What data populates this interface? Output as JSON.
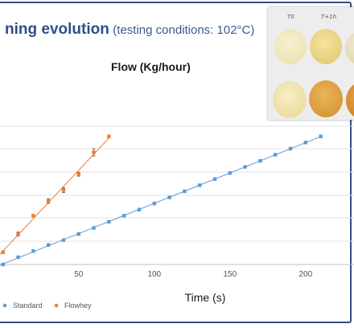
{
  "title": {
    "main": "ning evolution",
    "sub": "(testing conditions: 102°C)"
  },
  "flow_label": "Flow (Kg/hour)",
  "photo": {
    "label_left": "T0",
    "label_right": "T+1h"
  },
  "chart_data": {
    "type": "scatter",
    "xlabel": "Time (s)",
    "x_ticks": [
      "50",
      "100",
      "150",
      "200"
    ],
    "xlim": [
      -2,
      232
    ],
    "ylim": [
      0,
      5.8
    ],
    "grid": true,
    "legend_position": "bottom-left",
    "series": [
      {
        "name": "Standard",
        "color": "#5b9bd5",
        "x": [
          0,
          10,
          20,
          30,
          40,
          50,
          60,
          70,
          80,
          90,
          100,
          110,
          120,
          130,
          140,
          150,
          160,
          170,
          180,
          190,
          200,
          210
        ],
        "y": [
          0.0,
          0.3,
          0.55,
          0.8,
          1.0,
          1.25,
          1.5,
          1.75,
          2.0,
          2.25,
          2.5,
          2.75,
          3.0,
          3.25,
          3.5,
          3.75,
          4.0,
          4.25,
          4.5,
          4.75,
          5.0,
          5.25
        ],
        "has_error_bars": false
      },
      {
        "name": "Flowhey",
        "color": "#ed7d31",
        "x": [
          0,
          10,
          20,
          30,
          40,
          50,
          60,
          70
        ],
        "y": [
          0.5,
          1.25,
          2.0,
          2.6,
          3.05,
          3.7,
          4.6,
          5.25
        ],
        "error": [
          0.05,
          0.08,
          0.05,
          0.1,
          0.1,
          0.08,
          0.15,
          0.03
        ],
        "has_error_bars": true
      }
    ]
  }
}
